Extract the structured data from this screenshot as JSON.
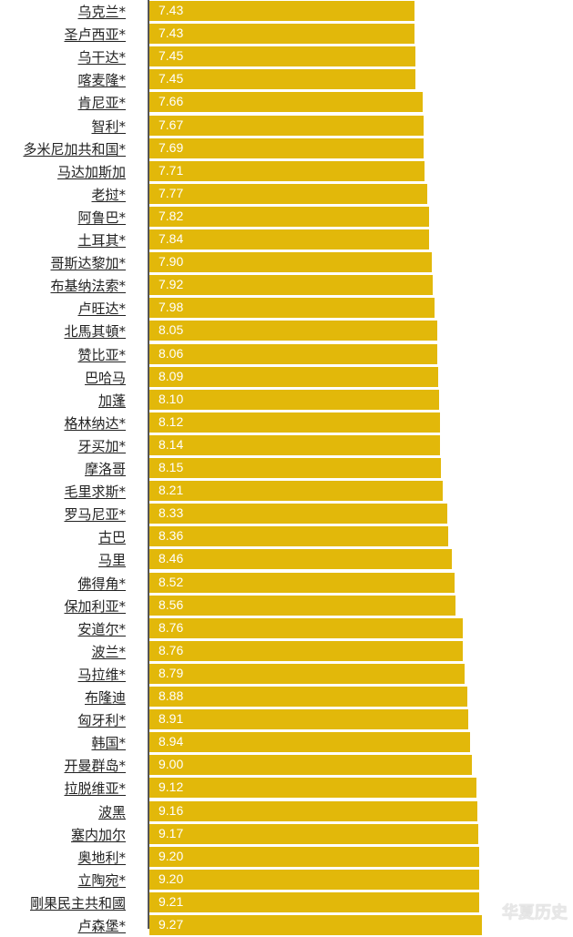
{
  "chart_data": {
    "type": "bar",
    "orientation": "horizontal",
    "categories": [
      "乌克兰*",
      "圣卢西亚*",
      "乌干达*",
      "喀麦隆*",
      "肯尼亚*",
      "智利*",
      "多米尼加共和国*",
      "马达加斯加",
      "老挝*",
      "阿鲁巴*",
      "土耳其*",
      "哥斯达黎加*",
      "布基纳法索*",
      "卢旺达*",
      "北馬其頓*",
      "赞比亚*",
      "巴哈马",
      "加蓬",
      "格林纳达*",
      "牙买加*",
      "摩洛哥",
      "毛里求斯*",
      "罗马尼亚*",
      "古巴",
      "马里",
      "佛得角*",
      "保加利亚*",
      "安道尔*",
      "波兰*",
      "马拉维*",
      "布隆迪",
      "匈牙利*",
      "韩国*",
      "开曼群岛*",
      "拉脱维亚*",
      "波黑",
      "塞内加尔",
      "奥地利*",
      "立陶宛*",
      "剛果民主共和國",
      "卢森堡*"
    ],
    "values": [
      7.43,
      7.43,
      7.45,
      7.45,
      7.66,
      7.67,
      7.69,
      7.71,
      7.77,
      7.82,
      7.84,
      7.9,
      7.92,
      7.98,
      8.05,
      8.06,
      8.09,
      8.1,
      8.12,
      8.14,
      8.15,
      8.21,
      8.33,
      8.36,
      8.46,
      8.52,
      8.56,
      8.76,
      8.76,
      8.79,
      8.88,
      8.91,
      8.94,
      9.0,
      9.12,
      9.16,
      9.17,
      9.2,
      9.2,
      9.21,
      9.27
    ],
    "value_labels": [
      "7.43",
      "7.43",
      "7.45",
      "7.45",
      "7.66",
      "7.67",
      "7.69",
      "7.71",
      "7.77",
      "7.82",
      "7.84",
      "7.90",
      "7.92",
      "7.98",
      "8.05",
      "8.06",
      "8.09",
      "8.10",
      "8.12",
      "8.14",
      "8.15",
      "8.21",
      "8.33",
      "8.36",
      "8.46",
      "8.52",
      "8.56",
      "8.76",
      "8.76",
      "8.79",
      "8.88",
      "8.91",
      "8.94",
      "9.00",
      "9.12",
      "9.16",
      "9.17",
      "9.20",
      "9.20",
      "9.21",
      "9.27"
    ],
    "bar_color": "#e2b80a"
  },
  "watermark": "华夏历史"
}
